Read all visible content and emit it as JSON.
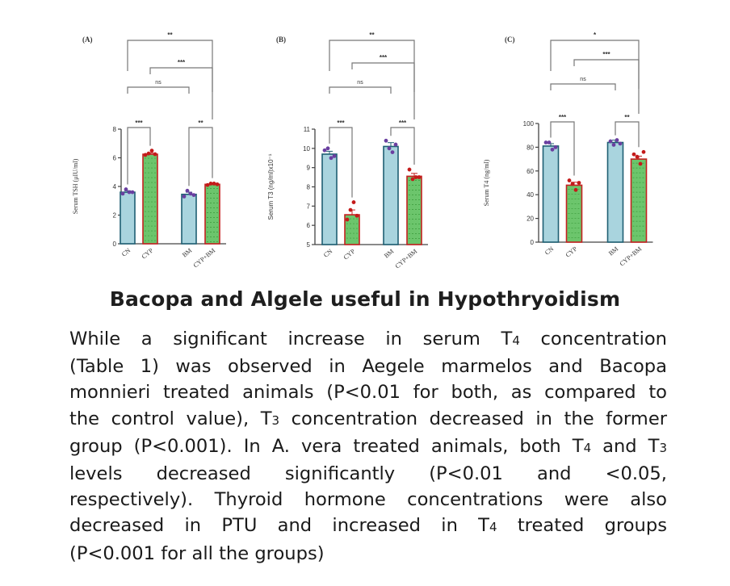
{
  "colors": {
    "control_fill": "#a9d4de",
    "control_stroke": "#1f5f73",
    "treated_fill": "#6cc56c",
    "treated_stroke": "#c42020",
    "control_dot": "#6a3fa0",
    "treated_dot": "#c41a1a",
    "bracket": "#777777",
    "text": "#1a1a1a"
  },
  "chart_data": [
    {
      "type": "bar",
      "panel_label": "(A)",
      "ylabel": "Serum TSH (μIU/ml)",
      "categories": [
        "CN",
        "CYP",
        "BM",
        "CYP+BM"
      ],
      "values": [
        3.6,
        6.25,
        3.45,
        4.15
      ],
      "errors": [
        0.1,
        0.1,
        0.15,
        0.1
      ],
      "points": [
        [
          3.5,
          3.8,
          3.6,
          3.6
        ],
        [
          6.2,
          6.3,
          6.5,
          6.25
        ],
        [
          3.3,
          3.7,
          3.5,
          3.4
        ],
        [
          4.1,
          4.2,
          4.2,
          4.15
        ]
      ],
      "ylim": [
        0,
        8
      ],
      "yticks": [
        "0",
        "2",
        "4",
        "6",
        "8"
      ],
      "ytick_values": [
        0,
        2,
        4,
        6,
        8
      ],
      "significance": [
        {
          "from": 0,
          "to": 1,
          "label": "***"
        },
        {
          "from": 2,
          "to": 3,
          "label": "**"
        },
        {
          "from": 0,
          "to": 2,
          "label": "ns"
        },
        {
          "from": 1,
          "to": 3,
          "label": "***"
        },
        {
          "from": 0,
          "to": 3,
          "label": "**"
        }
      ]
    },
    {
      "type": "bar",
      "panel_label": "(B)",
      "ylabel": "Serum T3 (ng/ml)x10⁻¹",
      "categories": [
        "CN",
        "CYP",
        "BM",
        "CYP+BM"
      ],
      "values": [
        9.7,
        6.55,
        10.1,
        8.55
      ],
      "errors": [
        0.15,
        0.25,
        0.2,
        0.15
      ],
      "points": [
        [
          9.9,
          10.0,
          9.5,
          9.6
        ],
        [
          6.3,
          6.8,
          7.2,
          6.5
        ],
        [
          10.4,
          10.0,
          9.8,
          10.2
        ],
        [
          8.9,
          8.4,
          8.5,
          8.5
        ]
      ],
      "ylim": [
        5,
        11
      ],
      "yticks": [
        "5",
        "6",
        "7",
        "8",
        "9",
        "10",
        "11"
      ],
      "ytick_values": [
        5,
        6,
        7,
        8,
        9,
        10,
        11
      ],
      "significance": [
        {
          "from": 0,
          "to": 1,
          "label": "***"
        },
        {
          "from": 2,
          "to": 3,
          "label": "***"
        },
        {
          "from": 0,
          "to": 2,
          "label": "ns"
        },
        {
          "from": 1,
          "to": 3,
          "label": "***"
        },
        {
          "from": 0,
          "to": 3,
          "label": "**"
        }
      ]
    },
    {
      "type": "bar",
      "panel_label": "(C)",
      "ylabel": "Serum T4 (ng/ml)",
      "categories": [
        "CN",
        "CYP",
        "BM",
        "CYP+BM"
      ],
      "values": [
        81,
        48,
        84,
        70
      ],
      "errors": [
        2,
        2.5,
        2,
        2.5
      ],
      "points": [
        [
          84,
          84,
          78,
          80
        ],
        [
          52,
          49,
          44,
          50
        ],
        [
          85,
          82,
          86,
          83
        ],
        [
          74,
          72,
          66,
          76
        ]
      ],
      "ylim": [
        0,
        100
      ],
      "yticks": [
        "0",
        "20",
        "40",
        "60",
        "80",
        "100"
      ],
      "ytick_values": [
        0,
        20,
        40,
        60,
        80,
        100
      ],
      "significance": [
        {
          "from": 0,
          "to": 1,
          "label": "***"
        },
        {
          "from": 2,
          "to": 3,
          "label": "**"
        },
        {
          "from": 0,
          "to": 2,
          "label": "ns"
        },
        {
          "from": 1,
          "to": 3,
          "label": "***"
        },
        {
          "from": 0,
          "to": 3,
          "label": "*"
        }
      ]
    }
  ],
  "article": {
    "heading": "Bacopa and Algele useful in Hypothryoidism",
    "lines": [
      [
        "While a significant increase in serum T",
        "4",
        " concentration"
      ],
      [
        "(Table 1) was observed in Aegele marmelos and Bacopa"
      ],
      [
        "monnieri treated animals (P<0.01 for both, as compared to"
      ],
      [
        "the control value), T",
        "3",
        " concentration decreased in the former"
      ],
      [
        "group (P<0.001). In A. vera treated animals, both T",
        "4",
        " and T",
        "3"
      ],
      [
        "levels decreased significantly (P<0.01 and <0.05,"
      ],
      [
        "respectively). Thyroid hormone concentrations were also"
      ],
      [
        "decreased in PTU and increased in T",
        "4",
        " treated groups"
      ],
      [
        "(P<0.001 for all the groups)"
      ]
    ]
  }
}
